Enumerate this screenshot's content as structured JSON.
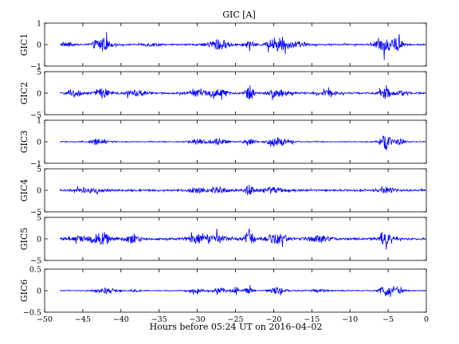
{
  "figure": {
    "title": "GIC [A]",
    "xlabel": "Hours before  05:24 UT on 2016–04–02"
  },
  "chart_data": {
    "type": "line",
    "title": "GIC [A]",
    "xlabel": "Hours before  05:24 UT on 2016–04–02",
    "xlim": [
      -50,
      0
    ],
    "data_range": [
      -48,
      -0.2
    ],
    "xticks": [
      -50,
      -45,
      -40,
      -35,
      -30,
      -25,
      -20,
      -15,
      -10,
      -5,
      0
    ],
    "xtick_labels": [
      "−50",
      "−45",
      "−40",
      "−35",
      "−30",
      "−25",
      "−20",
      "−15",
      "−10",
      "−5",
      "0"
    ],
    "grid": false,
    "line_color": "#0000ff",
    "panels": [
      {
        "ylabel": "GIC1",
        "ylim": [
          -1,
          1
        ],
        "yticks": [
          -1,
          0,
          1
        ],
        "ytick_labels": [
          "−1",
          "0",
          "1"
        ],
        "noise": 0.05,
        "bursts": [
          {
            "t": -47,
            "w": 1.0,
            "amp": 0.15
          },
          {
            "t": -42.5,
            "w": 1.5,
            "amp": 0.55
          },
          {
            "t": -36,
            "w": 1.5,
            "amp": 0.12
          },
          {
            "t": -27.2,
            "w": 2.0,
            "amp": 0.4
          },
          {
            "t": -23.2,
            "w": 1.0,
            "amp": 0.25
          },
          {
            "t": -19.5,
            "w": 1.8,
            "amp": 0.55
          },
          {
            "t": -17,
            "w": 2.0,
            "amp": 0.18
          },
          {
            "t": -5.5,
            "w": 1.5,
            "amp": 0.55
          },
          {
            "t": -3.8,
            "w": 1.0,
            "amp": 0.5
          }
        ]
      },
      {
        "ylabel": "GIC2",
        "ylim": [
          -5,
          5
        ],
        "yticks": [
          -5,
          0,
          5
        ],
        "ytick_labels": [
          "−5",
          "0",
          "5"
        ],
        "noise": 0.3,
        "bursts": [
          {
            "t": -46,
            "w": 1.5,
            "amp": 1.0
          },
          {
            "t": -42.3,
            "w": 1.2,
            "amp": 2.3
          },
          {
            "t": -38,
            "w": 2.0,
            "amp": 1.0
          },
          {
            "t": -30,
            "w": 2.0,
            "amp": 1.0
          },
          {
            "t": -27.2,
            "w": 1.5,
            "amp": 1.5
          },
          {
            "t": -23.2,
            "w": 0.8,
            "amp": 2.6
          },
          {
            "t": -19.5,
            "w": 1.8,
            "amp": 1.5
          },
          {
            "t": -13,
            "w": 2.0,
            "amp": 0.8
          },
          {
            "t": -5.3,
            "w": 1.2,
            "amp": 1.7
          },
          {
            "t": -3,
            "w": 1.0,
            "amp": 1.0
          }
        ]
      },
      {
        "ylabel": "GIC3",
        "ylim": [
          -1,
          1
        ],
        "yticks": [
          -1,
          0,
          1
        ],
        "ytick_labels": [
          "−1",
          "0",
          "1"
        ],
        "noise": 0.03,
        "bursts": [
          {
            "t": -43,
            "w": 1.5,
            "amp": 0.2
          },
          {
            "t": -30,
            "w": 1.5,
            "amp": 0.2
          },
          {
            "t": -27.2,
            "w": 1.5,
            "amp": 0.25
          },
          {
            "t": -23.2,
            "w": 1.0,
            "amp": 0.25
          },
          {
            "t": -19.3,
            "w": 2.0,
            "amp": 0.35
          },
          {
            "t": -5.3,
            "w": 1.0,
            "amp": 0.6
          },
          {
            "t": -3.5,
            "w": 1.0,
            "amp": 0.25
          }
        ]
      },
      {
        "ylabel": "GIC4",
        "ylim": [
          -5,
          5
        ],
        "yticks": [
          -5,
          0,
          5
        ],
        "ytick_labels": [
          "−5",
          "0",
          "5"
        ],
        "noise": 0.35,
        "bursts": [
          {
            "t": -44,
            "w": 3.0,
            "amp": 0.6
          },
          {
            "t": -30,
            "w": 1.5,
            "amp": 0.8
          },
          {
            "t": -27.2,
            "w": 1.5,
            "amp": 1.0
          },
          {
            "t": -23.2,
            "w": 0.8,
            "amp": 1.8
          },
          {
            "t": -20,
            "w": 2.0,
            "amp": 1.0
          },
          {
            "t": -5,
            "w": 1.5,
            "amp": 0.9
          }
        ]
      },
      {
        "ylabel": "GIC5",
        "ylim": [
          -5,
          5
        ],
        "yticks": [
          -5,
          0,
          5
        ],
        "ytick_labels": [
          "−5",
          "0",
          "5"
        ],
        "noise": 0.4,
        "bursts": [
          {
            "t": -45,
            "w": 2.0,
            "amp": 1.0
          },
          {
            "t": -42.5,
            "w": 1.5,
            "amp": 2.5
          },
          {
            "t": -38.5,
            "w": 1.5,
            "amp": 1.2
          },
          {
            "t": -30,
            "w": 2.0,
            "amp": 1.5
          },
          {
            "t": -27.2,
            "w": 1.5,
            "amp": 1.5
          },
          {
            "t": -23.2,
            "w": 0.8,
            "amp": 3.5
          },
          {
            "t": -19.5,
            "w": 1.8,
            "amp": 1.8
          },
          {
            "t": -14,
            "w": 2.0,
            "amp": 1.0
          },
          {
            "t": -5.3,
            "w": 1.2,
            "amp": 1.8
          }
        ]
      },
      {
        "ylabel": "GIC6",
        "ylim": [
          -0.5,
          0.5
        ],
        "yticks": [
          -0.5,
          0,
          0.5
        ],
        "ytick_labels": [
          "−0.5",
          "0",
          "0.5"
        ],
        "noise": 0.015,
        "bursts": [
          {
            "t": -42,
            "w": 2.0,
            "amp": 0.1
          },
          {
            "t": -38,
            "w": 1.0,
            "amp": 0.05
          },
          {
            "t": -30,
            "w": 1.5,
            "amp": 0.08
          },
          {
            "t": -27,
            "w": 1.2,
            "amp": 0.12
          },
          {
            "t": -25,
            "w": 0.5,
            "amp": 0.18
          },
          {
            "t": -23.3,
            "w": 0.8,
            "amp": 0.12
          },
          {
            "t": -19.5,
            "w": 1.5,
            "amp": 0.12
          },
          {
            "t": -14,
            "w": 1.5,
            "amp": 0.06
          },
          {
            "t": -5.3,
            "w": 1.2,
            "amp": 0.18
          },
          {
            "t": -3.5,
            "w": 1.2,
            "amp": 0.14
          }
        ]
      }
    ]
  }
}
